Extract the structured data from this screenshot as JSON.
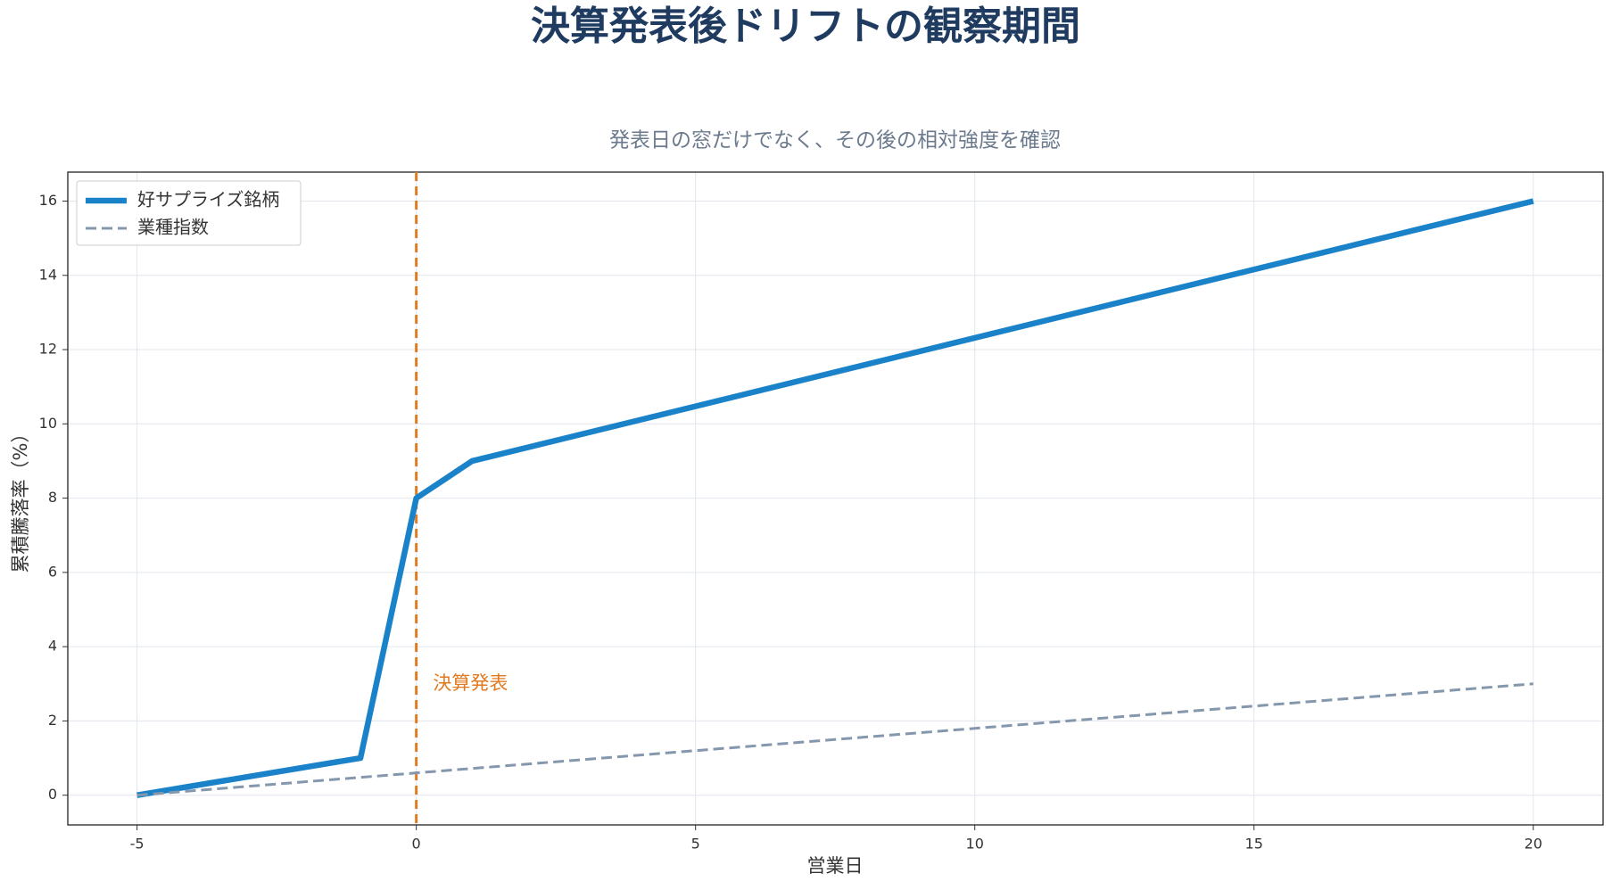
{
  "chart_data": {
    "type": "line",
    "title": "決算発表後ドリフトの観察期間",
    "subtitle": "発表日の窓だけでなく、その後の相対強度を確認",
    "x_label": "営業日",
    "y_label": "累積騰落率（%）",
    "series": [
      {
        "name": "好サプライズ銘柄",
        "color": "#1a82c8",
        "style": "solid",
        "x": [
          -5,
          -1,
          0,
          1,
          20
        ],
        "values": [
          0,
          1,
          8,
          9,
          16
        ]
      },
      {
        "name": "業種指数",
        "color": "#8497ad",
        "style": "dashed",
        "x": [
          -5,
          20
        ],
        "values": [
          0,
          3
        ]
      }
    ],
    "event_line": {
      "x": 0,
      "color": "#e07b22",
      "label": "決算発表",
      "label_x": 0.3,
      "label_y": 3
    },
    "xlim": [
      -6.24,
      21.25
    ],
    "ylim": [
      -0.8,
      16.78
    ],
    "xticks": [
      -5,
      0,
      5,
      10,
      15,
      20
    ],
    "yticks": [
      0,
      2,
      4,
      6,
      8,
      10,
      12,
      14,
      16
    ],
    "grid": true,
    "legend": "upper left"
  }
}
